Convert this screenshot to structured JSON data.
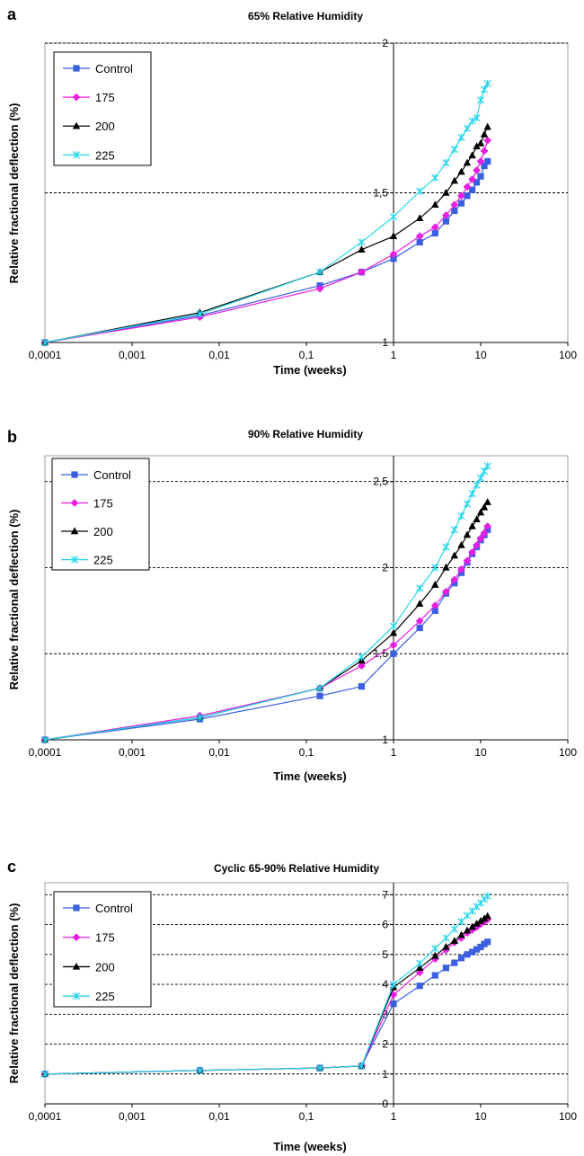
{
  "colors": {
    "Control": "#3a5fe0",
    "175": "#e81ee0",
    "200": "#000000",
    "225": "#2ad6ea"
  },
  "markers": {
    "Control": "square",
    "175": "diamond",
    "200": "triangle",
    "225": "asterisk"
  },
  "chart_data": [
    {
      "panel_label": "a",
      "type": "line",
      "title": "65% Relative Humidity",
      "xlabel": "Time (weeks)",
      "ylabel": "Relative fractional deflection (%)",
      "x_scale": "log",
      "xlim": [
        0.0001,
        100
      ],
      "ylim": [
        1,
        2
      ],
      "x_ticks": [
        "0,0001",
        "0,001",
        "0,01",
        "0,1",
        "1",
        "10",
        "100"
      ],
      "y_ticks": [
        {
          "value": 1,
          "label": "1"
        },
        {
          "value": 1.5,
          "label": "1,5"
        },
        {
          "value": 2,
          "label": "2"
        }
      ],
      "grid": "horizontal dashed",
      "legend": "top-left",
      "legend_entries": [
        "Control",
        "175",
        "200",
        "225"
      ],
      "series": [
        {
          "name": "Control",
          "x": [
            0.0001,
            0.006,
            0.143,
            0.43,
            1,
            2,
            3,
            4,
            5,
            6,
            7,
            8,
            9,
            10,
            11,
            12
          ],
          "y": [
            1.0,
            1.09,
            1.19,
            1.235,
            1.28,
            1.335,
            1.365,
            1.405,
            1.44,
            1.465,
            1.49,
            1.51,
            1.535,
            1.555,
            1.59,
            1.605
          ]
        },
        {
          "name": "175",
          "x": [
            0.0001,
            0.006,
            0.143,
            0.43,
            1,
            2,
            3,
            4,
            5,
            6,
            7,
            8,
            9,
            10,
            11,
            12
          ],
          "y": [
            1.0,
            1.085,
            1.18,
            1.235,
            1.295,
            1.355,
            1.385,
            1.425,
            1.46,
            1.49,
            1.52,
            1.545,
            1.575,
            1.605,
            1.64,
            1.675
          ]
        },
        {
          "name": "200",
          "x": [
            0.0001,
            0.006,
            0.143,
            0.43,
            1,
            2,
            3,
            4,
            5,
            6,
            7,
            8,
            9,
            10,
            11,
            12
          ],
          "y": [
            1.0,
            1.1,
            1.235,
            1.31,
            1.355,
            1.415,
            1.46,
            1.5,
            1.54,
            1.57,
            1.6,
            1.625,
            1.655,
            1.665,
            1.695,
            1.72
          ]
        },
        {
          "name": "225",
          "x": [
            0.0001,
            0.006,
            0.143,
            0.43,
            1,
            2,
            3,
            4,
            5,
            6,
            7,
            8,
            9,
            10,
            11,
            12
          ],
          "y": [
            1.0,
            1.095,
            1.235,
            1.335,
            1.42,
            1.505,
            1.55,
            1.6,
            1.645,
            1.685,
            1.715,
            1.74,
            1.75,
            1.81,
            1.845,
            1.865
          ]
        }
      ]
    },
    {
      "panel_label": "b",
      "type": "line",
      "title": "90% Relative Humidity",
      "xlabel": "Time (weeks)",
      "ylabel": "Relative fractional deflection (%)",
      "x_scale": "log",
      "xlim": [
        0.0001,
        100
      ],
      "ylim": [
        1,
        2.65
      ],
      "x_ticks": [
        "0,0001",
        "0,001",
        "0,01",
        "0,1",
        "1",
        "10",
        "100"
      ],
      "y_ticks": [
        {
          "value": 1,
          "label": "1"
        },
        {
          "value": 1.5,
          "label": "1,5"
        },
        {
          "value": 2,
          "label": "2"
        },
        {
          "value": 2.5,
          "label": "2,5"
        }
      ],
      "grid": "horizontal dashed",
      "legend": "top-left",
      "legend_entries": [
        "Control",
        "175",
        "200",
        "225"
      ],
      "series": [
        {
          "name": "Control",
          "x": [
            0.0001,
            0.006,
            0.143,
            0.43,
            1,
            2,
            3,
            4,
            5,
            6,
            7,
            8,
            9,
            10,
            11,
            12
          ],
          "y": [
            1.0,
            1.12,
            1.255,
            1.31,
            1.5,
            1.65,
            1.75,
            1.85,
            1.91,
            1.97,
            2.03,
            2.08,
            2.12,
            2.16,
            2.19,
            2.22
          ]
        },
        {
          "name": "175",
          "x": [
            0.0001,
            0.006,
            0.143,
            0.43,
            1,
            2,
            3,
            4,
            5,
            6,
            7,
            8,
            9,
            10,
            11,
            12
          ],
          "y": [
            1.0,
            1.14,
            1.3,
            1.43,
            1.55,
            1.69,
            1.78,
            1.86,
            1.93,
            1.99,
            2.04,
            2.09,
            2.13,
            2.17,
            2.2,
            2.24
          ]
        },
        {
          "name": "200",
          "x": [
            0.0001,
            0.006,
            0.143,
            0.43,
            1,
            2,
            3,
            4,
            5,
            6,
            7,
            8,
            9,
            10,
            11,
            12
          ],
          "y": [
            1.0,
            1.13,
            1.3,
            1.46,
            1.62,
            1.79,
            1.9,
            2.0,
            2.07,
            2.13,
            2.19,
            2.24,
            2.28,
            2.32,
            2.35,
            2.38
          ]
        },
        {
          "name": "225",
          "x": [
            0.0001,
            0.006,
            0.143,
            0.43,
            1,
            2,
            3,
            4,
            5,
            6,
            7,
            8,
            9,
            10,
            11,
            12
          ],
          "y": [
            1.0,
            1.13,
            1.3,
            1.48,
            1.66,
            1.88,
            2.0,
            2.12,
            2.22,
            2.3,
            2.37,
            2.43,
            2.48,
            2.52,
            2.56,
            2.59
          ]
        }
      ]
    },
    {
      "panel_label": "c",
      "type": "line",
      "title": "Cyclic 65-90% Relative Humidity",
      "xlabel": "Time (weeks)",
      "ylabel": "Relative fractional deflection (%)",
      "x_scale": "log",
      "xlim": [
        0.0001,
        100
      ],
      "ylim": [
        0,
        7.4
      ],
      "x_ticks": [
        "0,0001",
        "0,001",
        "0,01",
        "0,1",
        "1",
        "10",
        "100"
      ],
      "y_ticks": [
        {
          "value": 0,
          "label": "0"
        },
        {
          "value": 1,
          "label": "1"
        },
        {
          "value": 2,
          "label": "2"
        },
        {
          "value": 3,
          "label": "3"
        },
        {
          "value": 4,
          "label": "4"
        },
        {
          "value": 5,
          "label": "5"
        },
        {
          "value": 6,
          "label": "6"
        },
        {
          "value": 7,
          "label": "7"
        }
      ],
      "grid": "horizontal dashed",
      "legend": "top-left",
      "legend_entries": [
        "Control",
        "175",
        "200",
        "225"
      ],
      "series": [
        {
          "name": "Control",
          "x": [
            0.0001,
            0.006,
            0.143,
            0.43,
            1,
            2,
            3,
            4,
            5,
            6,
            7,
            8,
            9,
            10,
            11,
            12
          ],
          "y": [
            1.0,
            1.12,
            1.2,
            1.27,
            3.35,
            3.95,
            4.3,
            4.55,
            4.72,
            4.88,
            5.0,
            5.08,
            5.17,
            5.25,
            5.35,
            5.42
          ]
        },
        {
          "name": "175",
          "x": [
            0.0001,
            0.006,
            0.143,
            0.43,
            1,
            2,
            3,
            4,
            5,
            6,
            7,
            8,
            9,
            10,
            11,
            12
          ],
          "y": [
            1.0,
            1.12,
            1.2,
            1.27,
            3.65,
            4.4,
            4.85,
            5.15,
            5.4,
            5.55,
            5.72,
            5.82,
            5.92,
            6.02,
            6.1,
            6.17
          ]
        },
        {
          "name": "200",
          "x": [
            0.0001,
            0.006,
            0.143,
            0.43,
            1,
            2,
            3,
            4,
            5,
            6,
            7,
            8,
            9,
            10,
            11,
            12
          ],
          "y": [
            1.0,
            1.12,
            1.2,
            1.27,
            3.9,
            4.55,
            4.95,
            5.25,
            5.45,
            5.65,
            5.8,
            5.92,
            6.03,
            6.12,
            6.2,
            6.28
          ]
        },
        {
          "name": "225",
          "x": [
            0.0001,
            0.006,
            0.143,
            0.43,
            1,
            2,
            3,
            4,
            5,
            6,
            7,
            8,
            9,
            10,
            11,
            12
          ],
          "y": [
            1.0,
            1.12,
            1.2,
            1.27,
            4.0,
            4.7,
            5.2,
            5.55,
            5.85,
            6.1,
            6.3,
            6.45,
            6.6,
            6.72,
            6.85,
            6.95
          ]
        }
      ]
    }
  ]
}
